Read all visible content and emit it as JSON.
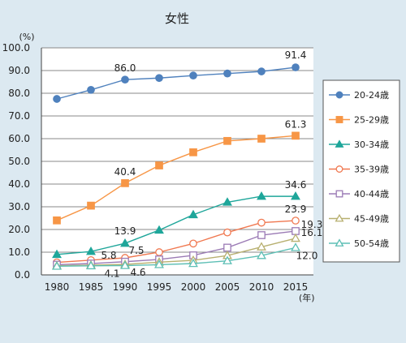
{
  "chart_data": {
    "type": "line",
    "title": "女性",
    "y_unit": "(%)",
    "x_unit": "(年)",
    "x": [
      1980,
      1985,
      1990,
      1995,
      2000,
      2005,
      2010,
      2015
    ],
    "x_tick_labels": [
      "1980",
      "1985",
      "1990",
      "1995",
      "2000",
      "2005",
      "2010",
      "2015"
    ],
    "ylim": [
      0,
      100
    ],
    "y_tick_labels": [
      "0.0",
      "10.0",
      "20.0",
      "30.0",
      "40.0",
      "50.0",
      "60.0",
      "70.0",
      "80.0",
      "90.0",
      "100.0"
    ],
    "grid": "horizontal",
    "legend_position": "right",
    "series": [
      {
        "name": "20-24歳",
        "color": "#4f81bd",
        "marker": "circle-filled",
        "values": [
          77.5,
          81.5,
          86.0,
          86.7,
          87.8,
          88.7,
          89.6,
          91.4
        ]
      },
      {
        "name": "25-29歳",
        "color": "#f79646",
        "marker": "square-filled",
        "values": [
          24.0,
          30.5,
          40.4,
          48.2,
          54.0,
          59.0,
          60.0,
          61.3
        ]
      },
      {
        "name": "30-34歳",
        "color": "#1ea69a",
        "marker": "triangle-filled",
        "values": [
          9.0,
          10.3,
          13.9,
          19.7,
          26.5,
          32.0,
          34.6,
          34.6
        ]
      },
      {
        "name": "35-39歳",
        "color": "#f07850",
        "marker": "circle-open",
        "values": [
          5.5,
          6.5,
          7.5,
          10.0,
          13.8,
          18.7,
          23.0,
          23.9
        ]
      },
      {
        "name": "40-44歳",
        "color": "#9b7bb5",
        "marker": "square-open",
        "values": [
          4.5,
          5.0,
          5.8,
          6.8,
          8.6,
          12.0,
          17.5,
          19.3
        ]
      },
      {
        "name": "45-49歳",
        "color": "#b8b070",
        "marker": "triangle-open",
        "values": [
          4.0,
          4.3,
          4.6,
          5.6,
          6.4,
          8.5,
          12.3,
          16.1
        ]
      },
      {
        "name": "50-54歳",
        "color": "#5dbfb5",
        "marker": "triangle-open",
        "values": [
          3.8,
          4.0,
          4.1,
          4.5,
          5.0,
          6.2,
          8.5,
          12.0
        ]
      }
    ],
    "annotations": [
      {
        "series": 0,
        "index": 2,
        "text": "86.0"
      },
      {
        "series": 0,
        "index": 7,
        "text": "91.4"
      },
      {
        "series": 1,
        "index": 2,
        "text": "40.4"
      },
      {
        "series": 1,
        "index": 7,
        "text": "61.3"
      },
      {
        "series": 2,
        "index": 2,
        "text": "13.9"
      },
      {
        "series": 2,
        "index": 7,
        "text": "34.6"
      },
      {
        "series": 3,
        "index": 2,
        "text": "7.5"
      },
      {
        "series": 3,
        "index": 7,
        "text": "23.9"
      },
      {
        "series": 4,
        "index": 2,
        "text": "5.8"
      },
      {
        "series": 4,
        "index": 7,
        "text": "19.3"
      },
      {
        "series": 5,
        "index": 2,
        "text": "4.6"
      },
      {
        "series": 5,
        "index": 7,
        "text": "16.1"
      },
      {
        "series": 6,
        "index": 2,
        "text": "4.1"
      },
      {
        "series": 6,
        "index": 7,
        "text": "12.0"
      }
    ]
  }
}
